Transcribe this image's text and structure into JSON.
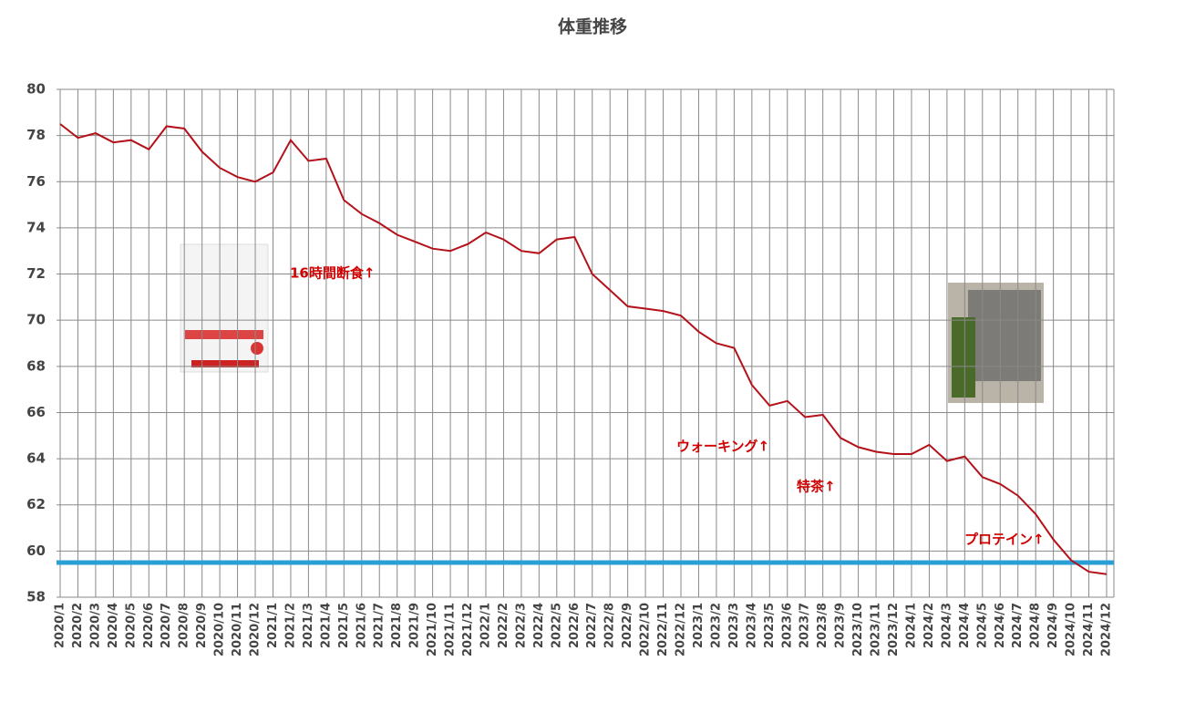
{
  "chart_data": {
    "type": "line",
    "title": "体重推移",
    "categories": [
      "2020/1",
      "2020/2",
      "2020/3",
      "2020/4",
      "2020/5",
      "2020/6",
      "2020/7",
      "2020/8",
      "2020/9",
      "2020/10",
      "2020/11",
      "2020/12",
      "2021/1",
      "2021/2",
      "2021/3",
      "2021/4",
      "2021/5",
      "2021/6",
      "2021/7",
      "2021/8",
      "2021/9",
      "2021/10",
      "2021/11",
      "2021/12",
      "2022/1",
      "2022/2",
      "2022/3",
      "2022/4",
      "2022/5",
      "2022/6",
      "2022/7",
      "2022/8",
      "2022/9",
      "2022/10",
      "2022/11",
      "2022/12",
      "2023/1",
      "2023/2",
      "2023/3",
      "2023/4",
      "2023/5",
      "2023/6",
      "2023/7",
      "2023/8",
      "2023/9",
      "2023/10",
      "2023/11",
      "2023/12",
      "2024/1",
      "2024/2",
      "2024/3",
      "2024/4",
      "2024/5",
      "2024/6",
      "2024/7",
      "2024/8",
      "2024/9",
      "2024/10",
      "2024/11",
      "2024/12"
    ],
    "series": [
      {
        "color": "#b3121a",
        "values": [
          78.5,
          77.9,
          78.1,
          77.7,
          77.8,
          77.4,
          78.4,
          78.3,
          77.3,
          76.6,
          76.2,
          76.0,
          76.4,
          77.8,
          76.9,
          77.0,
          75.2,
          74.6,
          74.2,
          73.7,
          73.4,
          73.1,
          73.0,
          73.3,
          73.8,
          73.5,
          73.0,
          72.9,
          73.5,
          73.6,
          72.0,
          71.3,
          70.6,
          70.5,
          70.4,
          70.2,
          69.5,
          69.0,
          68.8,
          67.2,
          66.3,
          66.5,
          65.8,
          65.9,
          64.9,
          64.5,
          64.3,
          64.2,
          64.2,
          64.6,
          63.9,
          64.1,
          63.2,
          62.9,
          62.4,
          61.6,
          60.5,
          59.6,
          59.1,
          59.0
        ]
      }
    ],
    "reference_line": {
      "value": 59.5,
      "color": "#2a9fd6"
    },
    "annotations": [
      "16時間断食↑",
      "ウォーキング↑",
      "特茶↑",
      "プロテイン↑"
    ],
    "annotation_color": "#d00000",
    "ylim": [
      58,
      80
    ],
    "yticks": [
      58,
      60,
      62,
      64,
      66,
      68,
      70,
      72,
      74,
      76,
      78,
      80
    ],
    "grid": true
  }
}
